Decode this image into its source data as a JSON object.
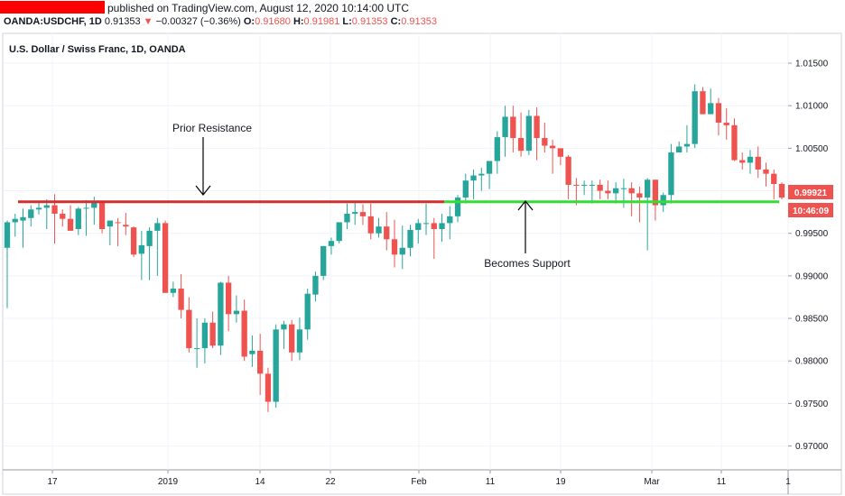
{
  "header": {
    "published": "published on TradingView.com, August 12, 2020 10:14:00 UTC",
    "symbol": "OANDA:USDCHF, 1D",
    "last": "0.91353",
    "change_arrow": "▼",
    "change": "−0.00327 (−0.36%)",
    "o_label": "O:",
    "o": "0.91680",
    "h_label": "H:",
    "h": "0.91981",
    "l_label": "L:",
    "l": "0.91353",
    "c_label": "C:",
    "c": "0.91353"
  },
  "panel_title": "U.S. Dollar / Swiss Franc, 1D, OANDA",
  "annotations": {
    "prior_resistance": "Prior Resistance",
    "becomes_support": "Becomes Support"
  },
  "price_badge": "0.99921",
  "time_badge": "10:46:09",
  "colors": {
    "up": "#26a69a",
    "down": "#ef5350",
    "resistance": "#d32f2f",
    "support": "#33dd33",
    "header_bar": "#ff0000"
  },
  "chart_data": {
    "type": "candlestick",
    "title": "U.S. Dollar / Swiss Franc, 1D, OANDA",
    "y_ticks": [
      "1.01500",
      "1.01000",
      "1.00500",
      "1.00000",
      "0.99500",
      "0.99000",
      "0.98500",
      "0.98000",
      "0.97500",
      "0.97000"
    ],
    "y_values": [
      1.015,
      1.01,
      1.005,
      1.0,
      0.995,
      0.99,
      0.985,
      0.98,
      0.975,
      0.97
    ],
    "x_ticks": [
      "17",
      "2019",
      "14",
      "22",
      "Feb",
      "11",
      "19",
      "Mar",
      "11",
      "1"
    ],
    "ylim": [
      0.9672,
      1.0185
    ],
    "levels": {
      "resistance": 0.9987,
      "support": 0.9987
    },
    "candles": [
      [
        0.9933,
        0.9965,
        0.9862,
        0.9963
      ],
      [
        0.9963,
        0.9973,
        0.9946,
        0.9967
      ],
      [
        0.9965,
        0.9979,
        0.9933,
        0.9969
      ],
      [
        0.9968,
        0.9983,
        0.9958,
        0.9978
      ],
      [
        0.9978,
        0.9988,
        0.9972,
        0.998
      ],
      [
        0.998,
        0.999,
        0.9955,
        0.9983
      ],
      [
        0.9983,
        0.9996,
        0.9938,
        0.9973
      ],
      [
        0.9973,
        0.9978,
        0.9958,
        0.9967
      ],
      [
        0.9967,
        0.9983,
        0.9953,
        0.9953
      ],
      [
        0.9955,
        0.9981,
        0.9948,
        0.9979
      ],
      [
        0.9979,
        0.9989,
        0.9947,
        0.998
      ],
      [
        0.998,
        0.9993,
        0.996,
        0.9986
      ],
      [
        0.9986,
        0.9988,
        0.995,
        0.9955
      ],
      [
        0.9958,
        0.9963,
        0.9936,
        0.9965
      ],
      [
        0.9963,
        0.9968,
        0.9935,
        0.9962
      ],
      [
        0.996,
        0.9974,
        0.9948,
        0.9958
      ],
      [
        0.9957,
        0.9958,
        0.9922,
        0.9925
      ],
      [
        0.9926,
        0.9953,
        0.9895,
        0.9936
      ],
      [
        0.9935,
        0.9957,
        0.9895,
        0.9953
      ],
      [
        0.9953,
        0.9968,
        0.99,
        0.9962
      ],
      [
        0.9962,
        0.9965,
        0.988,
        0.988
      ],
      [
        0.988,
        0.9893,
        0.9875,
        0.9885
      ],
      [
        0.9885,
        0.9902,
        0.985,
        0.986
      ],
      [
        0.986,
        0.9875,
        0.981,
        0.9815
      ],
      [
        0.9815,
        0.985,
        0.9792,
        0.9815
      ],
      [
        0.9815,
        0.985,
        0.9797,
        0.9845
      ],
      [
        0.9845,
        0.9858,
        0.9815,
        0.9818
      ],
      [
        0.9818,
        0.9893,
        0.9807,
        0.9892
      ],
      [
        0.9892,
        0.99,
        0.9835,
        0.9855
      ],
      [
        0.9855,
        0.9877,
        0.9845,
        0.9859
      ],
      [
        0.9859,
        0.9872,
        0.98,
        0.9805
      ],
      [
        0.9808,
        0.983,
        0.9793,
        0.9812
      ],
      [
        0.9812,
        0.9832,
        0.976,
        0.9785
      ],
      [
        0.9785,
        0.9792,
        0.974,
        0.9752
      ],
      [
        0.9752,
        0.9843,
        0.9745,
        0.9837
      ],
      [
        0.9837,
        0.9847,
        0.9814,
        0.9843
      ],
      [
        0.9843,
        0.9848,
        0.98,
        0.981
      ],
      [
        0.981,
        0.9851,
        0.9801,
        0.9837
      ],
      [
        0.9837,
        0.9885,
        0.9825,
        0.9879
      ],
      [
        0.9878,
        0.9905,
        0.987,
        0.99
      ],
      [
        0.99,
        0.993,
        0.9895,
        0.9935
      ],
      [
        0.9935,
        0.9945,
        0.9925,
        0.9941
      ],
      [
        0.9941,
        0.9963,
        0.9938,
        0.9963
      ],
      [
        0.9963,
        0.9985,
        0.9955,
        0.9973
      ],
      [
        0.9973,
        0.9988,
        0.996,
        0.9975
      ],
      [
        0.9975,
        0.9984,
        0.996,
        0.997
      ],
      [
        0.997,
        0.9985,
        0.9943,
        0.995
      ],
      [
        0.995,
        0.9968,
        0.9945,
        0.9958
      ],
      [
        0.9958,
        0.9975,
        0.993,
        0.9943
      ],
      [
        0.9943,
        0.9966,
        0.991,
        0.9925
      ],
      [
        0.9925,
        0.9959,
        0.9908,
        0.9933
      ],
      [
        0.9933,
        0.996,
        0.9923,
        0.9954
      ],
      [
        0.9954,
        0.9967,
        0.9938,
        0.9962
      ],
      [
        0.9962,
        0.9985,
        0.9948,
        0.9962
      ],
      [
        0.9962,
        0.9968,
        0.992,
        0.9955
      ],
      [
        0.9955,
        0.9973,
        0.994,
        0.9962
      ],
      [
        0.9962,
        0.9982,
        0.9943,
        0.997
      ],
      [
        0.997,
        0.9995,
        0.9963,
        0.9992
      ],
      [
        0.9992,
        1.002,
        0.9985,
        1.0012
      ],
      [
        1.0012,
        1.0025,
        0.999,
        1.0018
      ],
      [
        1.0018,
        1.0027,
        1.0,
        1.002
      ],
      [
        1.002,
        1.0035,
        1.0002,
        1.0035
      ],
      [
        1.0035,
        1.007,
        1.002,
        1.0063
      ],
      [
        1.0063,
        1.01,
        1.004,
        1.0087
      ],
      [
        1.0087,
        1.01,
        1.0045,
        1.0062
      ],
      [
        1.0062,
        1.0092,
        1.004,
        1.0047
      ],
      [
        1.0047,
        1.0095,
        1.0042,
        1.0088
      ],
      [
        1.0088,
        1.0098,
        1.0036,
        1.0062
      ],
      [
        1.0062,
        1.008,
        1.0045,
        1.0053
      ],
      [
        1.0053,
        1.006,
        1.002,
        1.005
      ],
      [
        1.005,
        1.0045,
        1.003,
        1.004
      ],
      [
        1.004,
        1.0042,
        0.999,
        1.0007
      ],
      [
        1.0007,
        1.0015,
        0.9983,
        1.0006
      ],
      [
        1.0006,
        1.0012,
        0.9995,
        1.0007
      ],
      [
        1.0007,
        1.0012,
        0.9985,
        1.0007
      ],
      [
        1.0007,
        1.0013,
        0.999,
        1.0
      ],
      [
        1.0,
        1.0012,
        0.999,
        0.9997
      ],
      [
        0.9997,
        1.001,
        0.9985,
        1.0003
      ],
      [
        1.0003,
        1.0014,
        0.998,
        1.0003
      ],
      [
        1.0003,
        1.001,
        0.997,
        0.9997
      ],
      [
        0.9997,
        1.0005,
        0.9963,
        0.9992
      ],
      [
        0.9992,
        1.0015,
        0.993,
        1.0013
      ],
      [
        1.0013,
        1.0013,
        0.9965,
        0.9983
      ],
      [
        0.9983,
        0.9998,
        0.9975,
        0.9995
      ],
      [
        0.9995,
        1.0055,
        0.9985,
        1.0045
      ],
      [
        1.0045,
        1.0058,
        1.0045,
        1.0052
      ],
      [
        1.0052,
        1.0077,
        1.0045,
        1.0055
      ],
      [
        1.0055,
        1.0125,
        1.005,
        1.0117
      ],
      [
        1.0117,
        1.0122,
        1.009,
        1.009
      ],
      [
        1.009,
        1.012,
        1.009,
        1.0103
      ],
      [
        1.0103,
        1.0109,
        1.0065,
        1.008
      ],
      [
        1.008,
        1.0097,
        1.006,
        1.0077
      ],
      [
        1.0077,
        1.0085,
        1.0035,
        1.0036
      ],
      [
        1.0036,
        1.0045,
        1.0025,
        1.0033
      ],
      [
        1.0033,
        1.0048,
        1.002,
        1.004
      ],
      [
        1.004,
        1.0052,
        1.0015,
        1.0025
      ],
      [
        1.0025,
        1.0033,
        1.0005,
        1.002
      ],
      [
        1.002,
        1.0025,
        0.999,
        1.0008
      ],
      [
        1.0008,
        1.001,
        0.999,
        0.9992
      ]
    ]
  }
}
